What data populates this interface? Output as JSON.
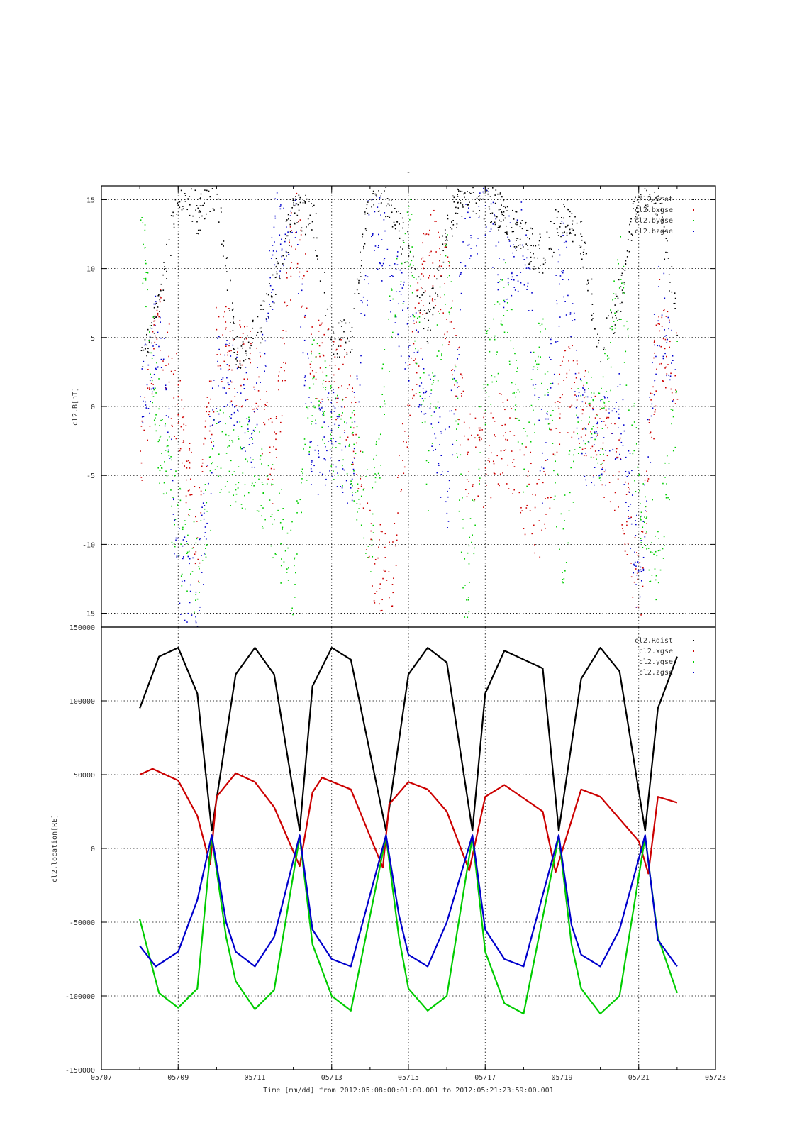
{
  "figure": {
    "top_marker": "-",
    "xlabel": "Time [mm/dd]  from 2012:05:08:00:01:00.001  to  2012:05:21:23:59:00.001"
  },
  "colors": {
    "black": "#000000",
    "red": "#cc0000",
    "green": "#00cc00",
    "blue": "#0000cc",
    "grid": "#000000"
  },
  "chart_data": [
    {
      "type": "scatter",
      "ylabel": "cl2.B[nT]",
      "xlabel": "",
      "ylim": [
        -16,
        16
      ],
      "yticks": [
        -15,
        -10,
        -5,
        0,
        5,
        10,
        15
      ],
      "grid": true,
      "legend_position": "top-right",
      "x_range": [
        "05/08 00:01",
        "05/21 23:59"
      ],
      "series": [
        {
          "name": "cl2.Btot",
          "color": "black",
          "x": [
            "05/08 00:00",
            "05/08 12:00",
            "05/09 00:00",
            "05/09 12:00",
            "05/10 00:00",
            "05/10 12:00",
            "05/11 00:00",
            "05/11 12:00",
            "05/12 00:00",
            "05/12 12:00",
            "05/13 00:00",
            "05/13 12:00",
            "05/14 00:00",
            "05/14 12:00",
            "05/15 00:00",
            "05/15 12:00",
            "05/16 00:00",
            "05/16 12:00",
            "05/17 00:00",
            "05/17 12:00",
            "05/18 00:00",
            "05/18 12:00",
            "05/19 00:00",
            "05/19 12:00",
            "05/20 00:00",
            "05/20 12:00",
            "05/21 00:00",
            "05/21 12:00",
            "05/22 00:00"
          ],
          "y": [
            4,
            7,
            16,
            14,
            16,
            4,
            5,
            9,
            14,
            14,
            5,
            5,
            16,
            15,
            11,
            6,
            13,
            16,
            15,
            14,
            12,
            11,
            14,
            12,
            4,
            8,
            16,
            15,
            6
          ]
        },
        {
          "name": "cl2.bxgse",
          "color": "red",
          "x": [
            "05/08 00:00",
            "05/08 12:00",
            "05/09 00:00",
            "05/09 12:00",
            "05/10 00:00",
            "05/10 12:00",
            "05/11 00:00",
            "05/11 12:00",
            "05/12 00:00",
            "05/12 12:00",
            "05/13 00:00",
            "05/13 12:00",
            "05/14 00:00",
            "05/14 12:00",
            "05/15 00:00",
            "05/15 12:00",
            "05/16 00:00",
            "05/16 12:00",
            "05/17 00:00",
            "05/17 12:00",
            "05/18 00:00",
            "05/18 12:00",
            "05/19 00:00",
            "05/19 12:00",
            "05/20 00:00",
            "05/20 12:00",
            "05/21 00:00",
            "05/21 12:00",
            "05/22 00:00"
          ],
          "y": [
            -3,
            6,
            0,
            -10,
            5,
            3,
            2,
            -5,
            14,
            4,
            3,
            0,
            -11,
            -13,
            0,
            12,
            8,
            -3,
            -4,
            -2,
            -6,
            -8,
            2,
            0,
            -3,
            -5,
            -14,
            6,
            3
          ]
        },
        {
          "name": "cl2.bygse",
          "color": "green",
          "x": [
            "05/08 00:00",
            "05/08 12:00",
            "05/09 00:00",
            "05/09 12:00",
            "05/10 00:00",
            "05/10 12:00",
            "05/11 00:00",
            "05/11 12:00",
            "05/12 00:00",
            "05/12 12:00",
            "05/13 00:00",
            "05/13 12:00",
            "05/14 00:00",
            "05/14 12:00",
            "05/15 00:00",
            "05/15 12:00",
            "05/16 00:00",
            "05/16 12:00",
            "05/17 00:00",
            "05/17 12:00",
            "05/18 00:00",
            "05/18 12:00",
            "05/19 00:00",
            "05/19 12:00",
            "05/20 00:00",
            "05/20 12:00",
            "05/21 00:00",
            "05/21 12:00",
            "05/22 00:00"
          ],
          "y": [
            14,
            -2,
            -9,
            -12,
            -3,
            -4,
            -4,
            -8,
            -12,
            3,
            -2,
            -3,
            -9,
            5,
            13,
            -5,
            12,
            -15,
            2,
            8,
            -4,
            5,
            -10,
            0,
            -2,
            10,
            -6,
            -12,
            2
          ]
        },
        {
          "name": "cl2.bzgse",
          "color": "blue",
          "x": [
            "05/08 00:00",
            "05/08 12:00",
            "05/09 00:00",
            "05/09 12:00",
            "05/10 00:00",
            "05/10 12:00",
            "05/11 00:00",
            "05/11 12:00",
            "05/12 00:00",
            "05/12 12:00",
            "05/13 00:00",
            "05/13 12:00",
            "05/14 00:00",
            "05/14 12:00",
            "05/15 00:00",
            "05/15 12:00",
            "05/16 00:00",
            "05/16 12:00",
            "05/17 00:00",
            "05/17 12:00",
            "05/18 00:00",
            "05/18 12:00",
            "05/19 00:00",
            "05/19 12:00",
            "05/20 00:00",
            "05/20 12:00",
            "05/21 00:00",
            "05/21 12:00",
            "05/22 00:00"
          ],
          "y": [
            0,
            6,
            -12,
            -14,
            2,
            1,
            -2,
            12,
            15,
            -4,
            -2,
            -4,
            14,
            10,
            5,
            2,
            -6,
            14,
            15,
            10,
            12,
            -5,
            12,
            -2,
            -3,
            0,
            -13,
            8,
            2
          ]
        }
      ]
    },
    {
      "type": "line",
      "ylabel": "cl2.location[RE]",
      "xlabel": "Time [mm/dd]  from 2012:05:08:00:01:00.001  to  2012:05:21:23:59:00.001",
      "ylim": [
        -150000,
        150000
      ],
      "yticks": [
        -150000,
        -100000,
        -50000,
        0,
        50000,
        100000,
        150000
      ],
      "xticks": [
        "05/07",
        "05/09",
        "05/11",
        "05/13",
        "05/15",
        "05/17",
        "05/19",
        "05/21",
        "05/23"
      ],
      "xlim": [
        "05/07 00:00",
        "05/23 00:00"
      ],
      "grid": true,
      "legend_position": "top-right",
      "orbit_period_days": 2.27,
      "series": [
        {
          "name": "cl2.Rdist",
          "color": "black",
          "x": [
            "05/08 00:00",
            "05/08 12:00",
            "05/09 00:00",
            "05/09 12:00",
            "05/09 21:00",
            "05/10 12:00",
            "05/11 00:00",
            "05/11 12:00",
            "05/12 04:00",
            "05/12 12:00",
            "05/13 00:00",
            "05/13 12:00",
            "05/14 10:00",
            "05/15 00:00",
            "05/15 12:00",
            "05/16 00:00",
            "05/16 16:00",
            "05/17 00:00",
            "05/17 12:00",
            "05/18 12:00",
            "05/18 22:00",
            "05/19 12:00",
            "05/20 00:00",
            "05/20 12:00",
            "05/21 04:00",
            "05/21 12:00",
            "05/22 00:00"
          ],
          "y": [
            95000,
            130000,
            136000,
            105000,
            12000,
            118000,
            136000,
            118000,
            12000,
            110000,
            136000,
            128000,
            12000,
            118000,
            136000,
            126000,
            12000,
            105000,
            134000,
            122000,
            12000,
            115000,
            136000,
            120000,
            12000,
            95000,
            130000
          ]
        },
        {
          "name": "cl2.xgse",
          "color": "red",
          "x": [
            "05/08 00:00",
            "05/08 08:00",
            "05/09 00:00",
            "05/09 12:00",
            "05/09 20:00",
            "05/10 00:00",
            "05/10 12:00",
            "05/11 00:00",
            "05/11 12:00",
            "05/12 04:00",
            "05/12 12:00",
            "05/12 18:00",
            "05/13 12:00",
            "05/14 08:00",
            "05/14 12:00",
            "05/15 00:00",
            "05/15 12:00",
            "05/16 00:00",
            "05/16 14:00",
            "05/17 00:00",
            "05/17 12:00",
            "05/18 12:00",
            "05/18 20:00",
            "05/19 12:00",
            "05/20 00:00",
            "05/20 12:00",
            "05/21 00:00",
            "05/21 06:00",
            "05/21 12:00",
            "05/22 00:00"
          ],
          "y": [
            50000,
            54000,
            46000,
            22000,
            -11000,
            35000,
            51000,
            45000,
            28000,
            -12000,
            38000,
            48000,
            40000,
            -13000,
            30000,
            45000,
            40000,
            25000,
            -15000,
            35000,
            43000,
            25000,
            -16000,
            40000,
            35000,
            20000,
            5000,
            -17000,
            35000,
            31000
          ]
        },
        {
          "name": "cl2.ygse",
          "color": "green",
          "x": [
            "05/08 00:00",
            "05/08 12:00",
            "05/09 00:00",
            "05/09 12:00",
            "05/09 21:00",
            "05/10 06:00",
            "05/10 12:00",
            "05/11 00:00",
            "05/11 12:00",
            "05/12 04:00",
            "05/12 12:00",
            "05/13 00:00",
            "05/13 12:00",
            "05/14 10:00",
            "05/14 18:00",
            "05/15 00:00",
            "05/15 12:00",
            "05/16 00:00",
            "05/16 16:00",
            "05/17 00:00",
            "05/17 12:00",
            "05/18 00:00",
            "05/18 22:00",
            "05/19 06:00",
            "05/19 12:00",
            "05/20 00:00",
            "05/20 12:00",
            "05/21 04:00",
            "05/21 12:00",
            "05/22 00:00"
          ],
          "y": [
            -48000,
            -98000,
            -108000,
            -95000,
            8000,
            -60000,
            -90000,
            -109000,
            -96000,
            8000,
            -65000,
            -100000,
            -110000,
            8000,
            -60000,
            -95000,
            -110000,
            -100000,
            8000,
            -70000,
            -105000,
            -112000,
            8000,
            -65000,
            -95000,
            -112000,
            -100000,
            8000,
            -60000,
            -98000
          ]
        },
        {
          "name": "cl2.zgse",
          "color": "blue",
          "x": [
            "05/08 00:00",
            "05/08 10:00",
            "05/09 00:00",
            "05/09 12:00",
            "05/09 21:00",
            "05/10 06:00",
            "05/10 12:00",
            "05/11 00:00",
            "05/11 12:00",
            "05/12 04:00",
            "05/12 12:00",
            "05/13 00:00",
            "05/13 12:00",
            "05/14 10:00",
            "05/14 18:00",
            "05/15 00:00",
            "05/15 12:00",
            "05/16 00:00",
            "05/16 16:00",
            "05/17 00:00",
            "05/17 12:00",
            "05/18 00:00",
            "05/18 22:00",
            "05/19 06:00",
            "05/19 12:00",
            "05/20 00:00",
            "05/20 12:00",
            "05/21 04:00",
            "05/21 12:00",
            "05/22 00:00"
          ],
          "y": [
            -66000,
            -80000,
            -70000,
            -35000,
            9000,
            -50000,
            -70000,
            -80000,
            -60000,
            9000,
            -55000,
            -75000,
            -80000,
            9000,
            -45000,
            -72000,
            -80000,
            -50000,
            9000,
            -55000,
            -75000,
            -80000,
            9000,
            -52000,
            -72000,
            -80000,
            -55000,
            9000,
            -62000,
            -80000
          ]
        }
      ]
    }
  ]
}
